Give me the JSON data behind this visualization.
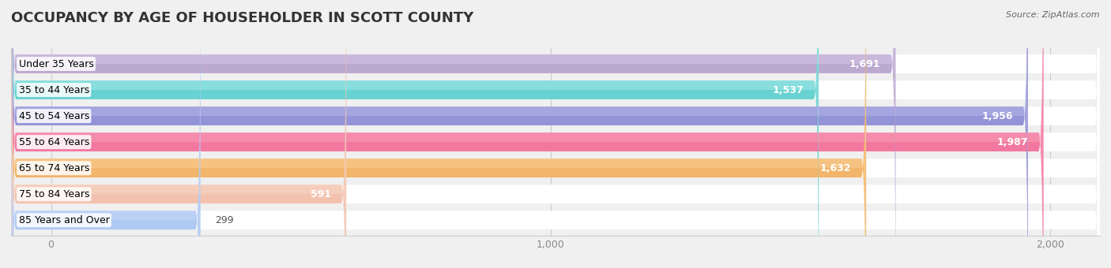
{
  "title": "OCCUPANCY BY AGE OF HOUSEHOLDER IN SCOTT COUNTY",
  "source": "Source: ZipAtlas.com",
  "categories": [
    "Under 35 Years",
    "35 to 44 Years",
    "45 to 54 Years",
    "55 to 64 Years",
    "65 to 74 Years",
    "75 to 84 Years",
    "85 Years and Over"
  ],
  "values": [
    1691,
    1537,
    1956,
    1987,
    1632,
    591,
    299
  ],
  "bar_colors": [
    "#b09ac8",
    "#4ecbca",
    "#8080d0",
    "#f06090",
    "#f0a850",
    "#f0b8a0",
    "#a0c0f0"
  ],
  "bar_colors_light": [
    "#d8c8e8",
    "#a8e8e8",
    "#b8b8e8",
    "#f8a0b8",
    "#f8d098",
    "#f8d8c8",
    "#c8d8f8"
  ],
  "xlim": [
    -80,
    2100
  ],
  "xticks": [
    0,
    1000,
    2000
  ],
  "xticklabels": [
    "0",
    "1,000",
    "2,000"
  ],
  "background_color": "#f0f0f0",
  "bar_background": "#e8e8e8",
  "title_fontsize": 13,
  "label_fontsize": 9,
  "value_fontsize": 9
}
